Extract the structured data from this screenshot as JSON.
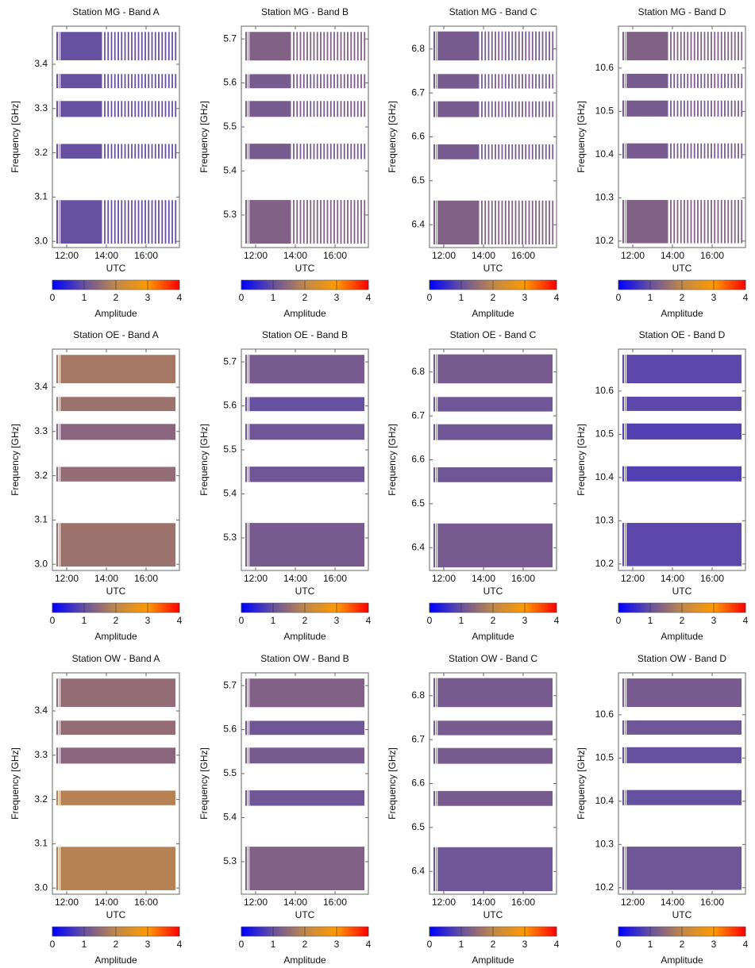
{
  "chart_data": [
    {
      "type": "heatmap",
      "title": "Station MG - Band A",
      "xlabel": "UTC",
      "ylabel": "Frequency [GHz]",
      "xlim": [
        11.28,
        17.68
      ],
      "xticks": [
        {
          "value": 12,
          "label": "12:00"
        },
        {
          "value": 14,
          "label": "14:00"
        },
        {
          "value": 16,
          "label": "16:00"
        }
      ],
      "ylim": [
        2.986,
        3.486
      ],
      "yticks": [
        {
          "value": 3,
          "label": "3.0"
        },
        3.1,
        3.2,
        3.3,
        3.4
      ],
      "bands": [
        [
          3.409,
          3.473
        ],
        [
          3.346,
          3.378
        ],
        [
          3.281,
          3.317
        ],
        [
          3.187,
          3.22
        ],
        [
          2.995,
          3.093
        ]
      ],
      "values": [
        1.0,
        1.0,
        1.0,
        1.0,
        1.0
      ],
      "time_blocks": [
        [
          11.48,
          13.78
        ]
      ],
      "scans": [
        13.92,
        14.09,
        14.26,
        14.43,
        14.6,
        14.77,
        14.94,
        15.11,
        15.28,
        15.45,
        15.62,
        15.79,
        15.96,
        16.13,
        16.3,
        16.47,
        16.64,
        16.81,
        16.98,
        17.15,
        17.32,
        17.49
      ],
      "colorbar": {
        "label": "Amplitude",
        "lim": [
          0,
          4
        ],
        "ticks": [
          0,
          1,
          2,
          3,
          4
        ],
        "colors": [
          "#0000ff",
          "#6650a0",
          "#c0884a",
          "#ff9a00",
          "#ff0000"
        ]
      }
    },
    {
      "type": "heatmap",
      "title": "Station MG - Band B",
      "xlabel": "UTC",
      "ylabel": "Frequency [GHz]",
      "xlim": [
        11.28,
        17.68
      ],
      "xticks": [
        {
          "value": 12,
          "label": "12:00"
        },
        {
          "value": 14,
          "label": "14:00"
        },
        {
          "value": 16,
          "label": "16:00"
        }
      ],
      "ylim": [
        5.226,
        5.729
      ],
      "yticks": [
        5.3,
        5.4,
        5.5,
        5.6,
        5.7
      ],
      "bands": [
        [
          5.651,
          5.716
        ],
        [
          5.588,
          5.62
        ],
        [
          5.523,
          5.559
        ],
        [
          5.427,
          5.462
        ],
        [
          5.235,
          5.334
        ]
      ],
      "values": [
        1.3,
        1.2,
        1.2,
        1.2,
        1.3
      ],
      "time_blocks": [
        [
          11.48,
          13.78
        ]
      ],
      "scans": [
        13.92,
        14.09,
        14.26,
        14.43,
        14.6,
        14.77,
        14.94,
        15.11,
        15.28,
        15.45,
        15.62,
        15.79,
        15.96,
        16.13,
        16.3,
        16.47,
        16.64,
        16.81,
        16.98,
        17.15,
        17.32,
        17.49
      ],
      "colorbar": {
        "label": "Amplitude",
        "lim": [
          0,
          4
        ],
        "ticks": [
          0,
          1,
          2,
          3,
          4
        ],
        "colors": [
          "#0000ff",
          "#6650a0",
          "#c0884a",
          "#ff9a00",
          "#ff0000"
        ]
      }
    },
    {
      "type": "heatmap",
      "title": "Station MG - Band C",
      "xlabel": "UTC",
      "ylabel": "Frequency [GHz]",
      "xlim": [
        11.28,
        17.68
      ],
      "xticks": [
        {
          "value": 12,
          "label": "12:00"
        },
        {
          "value": 14,
          "label": "14:00"
        },
        {
          "value": 16,
          "label": "16:00"
        }
      ],
      "ylim": [
        6.348,
        6.852
      ],
      "yticks": [
        6.4,
        6.5,
        6.6,
        6.7,
        6.8
      ],
      "bands": [
        [
          6.774,
          6.84
        ],
        [
          6.71,
          6.743
        ],
        [
          6.645,
          6.681
        ],
        [
          6.549,
          6.583
        ],
        [
          6.355,
          6.455
        ]
      ],
      "values": [
        1.2,
        1.2,
        1.2,
        1.2,
        1.3
      ],
      "time_blocks": [
        [
          11.48,
          13.78
        ]
      ],
      "scans": [
        13.92,
        14.09,
        14.26,
        14.43,
        14.6,
        14.77,
        14.94,
        15.11,
        15.28,
        15.45,
        15.62,
        15.79,
        15.96,
        16.13,
        16.3,
        16.47,
        16.64,
        16.81,
        16.98,
        17.15,
        17.32,
        17.49
      ],
      "colorbar": {
        "label": "Amplitude",
        "lim": [
          0,
          4
        ],
        "ticks": [
          0,
          1,
          2,
          3,
          4
        ],
        "colors": [
          "#0000ff",
          "#6650a0",
          "#c0884a",
          "#ff9a00",
          "#ff0000"
        ]
      }
    },
    {
      "type": "heatmap",
      "title": "Station MG - Band D",
      "xlabel": "UTC",
      "ylabel": "Frequency [GHz]",
      "xlim": [
        11.28,
        17.68
      ],
      "xticks": [
        {
          "value": 12,
          "label": "12:00"
        },
        {
          "value": 14,
          "label": "14:00"
        },
        {
          "value": 16,
          "label": "16:00"
        }
      ],
      "ylim": [
        10.185,
        10.697
      ],
      "yticks": [
        10.2,
        10.3,
        10.4,
        10.5,
        10.6
      ],
      "bands": [
        [
          10.618,
          10.684
        ],
        [
          10.554,
          10.587
        ],
        [
          10.488,
          10.525
        ],
        [
          10.391,
          10.426
        ],
        [
          10.195,
          10.295
        ]
      ],
      "values": [
        1.3,
        1.2,
        1.2,
        1.2,
        1.3
      ],
      "time_blocks": [
        [
          11.48,
          13.78
        ]
      ],
      "scans": [
        13.92,
        14.09,
        14.26,
        14.43,
        14.6,
        14.77,
        14.94,
        15.11,
        15.28,
        15.45,
        15.62,
        15.79,
        15.96,
        16.13,
        16.3,
        16.47,
        16.64,
        16.81,
        16.98,
        17.15,
        17.32,
        17.49
      ],
      "colorbar": {
        "label": "Amplitude",
        "lim": [
          0,
          4
        ],
        "ticks": [
          0,
          1,
          2,
          3,
          4
        ],
        "colors": [
          "#0000ff",
          "#6650a0",
          "#c0884a",
          "#ff9a00",
          "#ff0000"
        ]
      }
    },
    {
      "type": "heatmap",
      "title": "Station OE - Band A",
      "xlabel": "UTC",
      "ylabel": "Frequency [GHz]",
      "xlim": [
        11.28,
        17.68
      ],
      "xticks": [
        {
          "value": 12,
          "label": "12:00"
        },
        {
          "value": 14,
          "label": "14:00"
        },
        {
          "value": 16,
          "label": "16:00"
        }
      ],
      "ylim": [
        2.986,
        3.486
      ],
      "yticks": [
        {
          "value": 3,
          "label": "3.0"
        },
        3.1,
        3.2,
        3.3,
        3.4
      ],
      "bands": [
        [
          3.409,
          3.473
        ],
        [
          3.346,
          3.378
        ],
        [
          3.281,
          3.317
        ],
        [
          3.187,
          3.22
        ],
        [
          2.995,
          3.093
        ]
      ],
      "values": [
        1.7,
        1.6,
        1.4,
        1.5,
        1.6
      ],
      "time_blocks": [
        [
          11.48,
          17.48
        ]
      ],
      "colorbar": {
        "label": "Amplitude",
        "lim": [
          0,
          4
        ],
        "ticks": [
          0,
          1,
          2,
          3,
          4
        ],
        "colors": [
          "#0000ff",
          "#6650a0",
          "#c0884a",
          "#ff9a00",
          "#ff0000"
        ]
      }
    },
    {
      "type": "heatmap",
      "title": "Station OE - Band B",
      "xlabel": "UTC",
      "ylabel": "Frequency [GHz]",
      "xlim": [
        11.28,
        17.68
      ],
      "xticks": [
        {
          "value": 12,
          "label": "12:00"
        },
        {
          "value": 14,
          "label": "14:00"
        },
        {
          "value": 16,
          "label": "16:00"
        }
      ],
      "ylim": [
        5.226,
        5.729
      ],
      "yticks": [
        5.3,
        5.4,
        5.5,
        5.6,
        5.7
      ],
      "bands": [
        [
          5.651,
          5.716
        ],
        [
          5.588,
          5.62
        ],
        [
          5.523,
          5.559
        ],
        [
          5.427,
          5.462
        ],
        [
          5.235,
          5.334
        ]
      ],
      "values": [
        1.2,
        1.0,
        1.1,
        1.1,
        1.2
      ],
      "time_blocks": [
        [
          11.48,
          17.48
        ]
      ],
      "colorbar": {
        "label": "Amplitude",
        "lim": [
          0,
          4
        ],
        "ticks": [
          0,
          1,
          2,
          3,
          4
        ],
        "colors": [
          "#0000ff",
          "#6650a0",
          "#c0884a",
          "#ff9a00",
          "#ff0000"
        ]
      }
    },
    {
      "type": "heatmap",
      "title": "Station OE - Band C",
      "xlabel": "UTC",
      "ylabel": "Frequency [GHz]",
      "xlim": [
        11.28,
        17.68
      ],
      "xticks": [
        {
          "value": 12,
          "label": "12:00"
        },
        {
          "value": 14,
          "label": "14:00"
        },
        {
          "value": 16,
          "label": "16:00"
        }
      ],
      "ylim": [
        6.348,
        6.852
      ],
      "yticks": [
        6.4,
        6.5,
        6.6,
        6.7,
        6.8
      ],
      "bands": [
        [
          6.774,
          6.84
        ],
        [
          6.71,
          6.743
        ],
        [
          6.645,
          6.681
        ],
        [
          6.549,
          6.583
        ],
        [
          6.355,
          6.455
        ]
      ],
      "values": [
        1.2,
        1.1,
        1.1,
        1.1,
        1.2
      ],
      "time_blocks": [
        [
          11.48,
          17.48
        ]
      ],
      "colorbar": {
        "label": "Amplitude",
        "lim": [
          0,
          4
        ],
        "ticks": [
          0,
          1,
          2,
          3,
          4
        ],
        "colors": [
          "#0000ff",
          "#6650a0",
          "#c0884a",
          "#ff9a00",
          "#ff0000"
        ]
      }
    },
    {
      "type": "heatmap",
      "title": "Station OE - Band D",
      "xlabel": "UTC",
      "ylabel": "Frequency [GHz]",
      "xlim": [
        11.28,
        17.68
      ],
      "xticks": [
        {
          "value": 12,
          "label": "12:00"
        },
        {
          "value": 14,
          "label": "14:00"
        },
        {
          "value": 16,
          "label": "16:00"
        }
      ],
      "ylim": [
        10.185,
        10.697
      ],
      "yticks": [
        10.2,
        10.3,
        10.4,
        10.5,
        10.6
      ],
      "bands": [
        [
          10.618,
          10.684
        ],
        [
          10.554,
          10.587
        ],
        [
          10.488,
          10.525
        ],
        [
          10.391,
          10.426
        ],
        [
          10.195,
          10.295
        ]
      ],
      "values": [
        0.9,
        0.9,
        0.8,
        0.8,
        0.9
      ],
      "time_blocks": [
        [
          11.48,
          17.48
        ]
      ],
      "colorbar": {
        "label": "Amplitude",
        "lim": [
          0,
          4
        ],
        "ticks": [
          0,
          1,
          2,
          3,
          4
        ],
        "colors": [
          "#0000ff",
          "#6650a0",
          "#c0884a",
          "#ff9a00",
          "#ff0000"
        ]
      }
    },
    {
      "type": "heatmap",
      "title": "Station OW - Band A",
      "xlabel": "UTC",
      "ylabel": "Frequency [GHz]",
      "xlim": [
        11.28,
        17.68
      ],
      "xticks": [
        {
          "value": 12,
          "label": "12:00"
        },
        {
          "value": 14,
          "label": "14:00"
        },
        {
          "value": 16,
          "label": "16:00"
        }
      ],
      "ylim": [
        2.986,
        3.486
      ],
      "yticks": [
        {
          "value": 3,
          "label": "3.0"
        },
        3.1,
        3.2,
        3.3,
        3.4
      ],
      "bands": [
        [
          3.409,
          3.473
        ],
        [
          3.346,
          3.378
        ],
        [
          3.281,
          3.317
        ],
        [
          3.187,
          3.22
        ],
        [
          2.995,
          3.093
        ]
      ],
      "values": [
        1.5,
        1.5,
        1.4,
        1.9,
        1.9
      ],
      "time_blocks": [
        [
          11.48,
          17.48
        ]
      ],
      "colorbar": {
        "label": "Amplitude",
        "lim": [
          0,
          4
        ],
        "ticks": [
          0,
          1,
          2,
          3,
          4
        ],
        "colors": [
          "#0000ff",
          "#6650a0",
          "#c0884a",
          "#ff9a00",
          "#ff0000"
        ]
      }
    },
    {
      "type": "heatmap",
      "title": "Station OW - Band B",
      "xlabel": "UTC",
      "ylabel": "Frequency [GHz]",
      "xlim": [
        11.28,
        17.68
      ],
      "xticks": [
        {
          "value": 12,
          "label": "12:00"
        },
        {
          "value": 14,
          "label": "14:00"
        },
        {
          "value": 16,
          "label": "16:00"
        }
      ],
      "ylim": [
        5.226,
        5.729
      ],
      "yticks": [
        5.3,
        5.4,
        5.5,
        5.6,
        5.7
      ],
      "bands": [
        [
          5.651,
          5.716
        ],
        [
          5.588,
          5.62
        ],
        [
          5.523,
          5.559
        ],
        [
          5.427,
          5.462
        ],
        [
          5.235,
          5.334
        ]
      ],
      "values": [
        1.3,
        1.1,
        1.2,
        1.1,
        1.3
      ],
      "time_blocks": [
        [
          11.48,
          17.48
        ]
      ],
      "colorbar": {
        "label": "Amplitude",
        "lim": [
          0,
          4
        ],
        "ticks": [
          0,
          1,
          2,
          3,
          4
        ],
        "colors": [
          "#0000ff",
          "#6650a0",
          "#c0884a",
          "#ff9a00",
          "#ff0000"
        ]
      }
    },
    {
      "type": "heatmap",
      "title": "Station OW - Band C",
      "xlabel": "UTC",
      "ylabel": "Frequency [GHz]",
      "xlim": [
        11.28,
        17.68
      ],
      "xticks": [
        {
          "value": 12,
          "label": "12:00"
        },
        {
          "value": 14,
          "label": "14:00"
        },
        {
          "value": 16,
          "label": "16:00"
        }
      ],
      "ylim": [
        6.348,
        6.852
      ],
      "yticks": [
        6.4,
        6.5,
        6.6,
        6.7,
        6.8
      ],
      "bands": [
        [
          6.774,
          6.84
        ],
        [
          6.71,
          6.743
        ],
        [
          6.645,
          6.681
        ],
        [
          6.549,
          6.583
        ],
        [
          6.355,
          6.455
        ]
      ],
      "values": [
        1.2,
        1.2,
        1.2,
        1.2,
        1.1
      ],
      "time_blocks": [
        [
          11.48,
          17.48
        ]
      ],
      "colorbar": {
        "label": "Amplitude",
        "lim": [
          0,
          4
        ],
        "ticks": [
          0,
          1,
          2,
          3,
          4
        ],
        "colors": [
          "#0000ff",
          "#6650a0",
          "#c0884a",
          "#ff9a00",
          "#ff0000"
        ]
      }
    },
    {
      "type": "heatmap",
      "title": "Station OW - Band D",
      "xlabel": "UTC",
      "ylabel": "Frequency [GHz]",
      "xlim": [
        11.28,
        17.68
      ],
      "xticks": [
        {
          "value": 12,
          "label": "12:00"
        },
        {
          "value": 14,
          "label": "14:00"
        },
        {
          "value": 16,
          "label": "16:00"
        }
      ],
      "ylim": [
        10.185,
        10.697
      ],
      "yticks": [
        10.2,
        10.3,
        10.4,
        10.5,
        10.6
      ],
      "bands": [
        [
          10.618,
          10.684
        ],
        [
          10.554,
          10.587
        ],
        [
          10.488,
          10.525
        ],
        [
          10.391,
          10.426
        ],
        [
          10.195,
          10.295
        ]
      ],
      "values": [
        1.2,
        1.1,
        1.0,
        1.0,
        1.1
      ],
      "time_blocks": [
        [
          11.48,
          17.48
        ]
      ],
      "colorbar": {
        "label": "Amplitude",
        "lim": [
          0,
          4
        ],
        "ticks": [
          0,
          1,
          2,
          3,
          4
        ],
        "colors": [
          "#0000ff",
          "#6650a0",
          "#c0884a",
          "#ff9a00",
          "#ff0000"
        ]
      }
    }
  ]
}
